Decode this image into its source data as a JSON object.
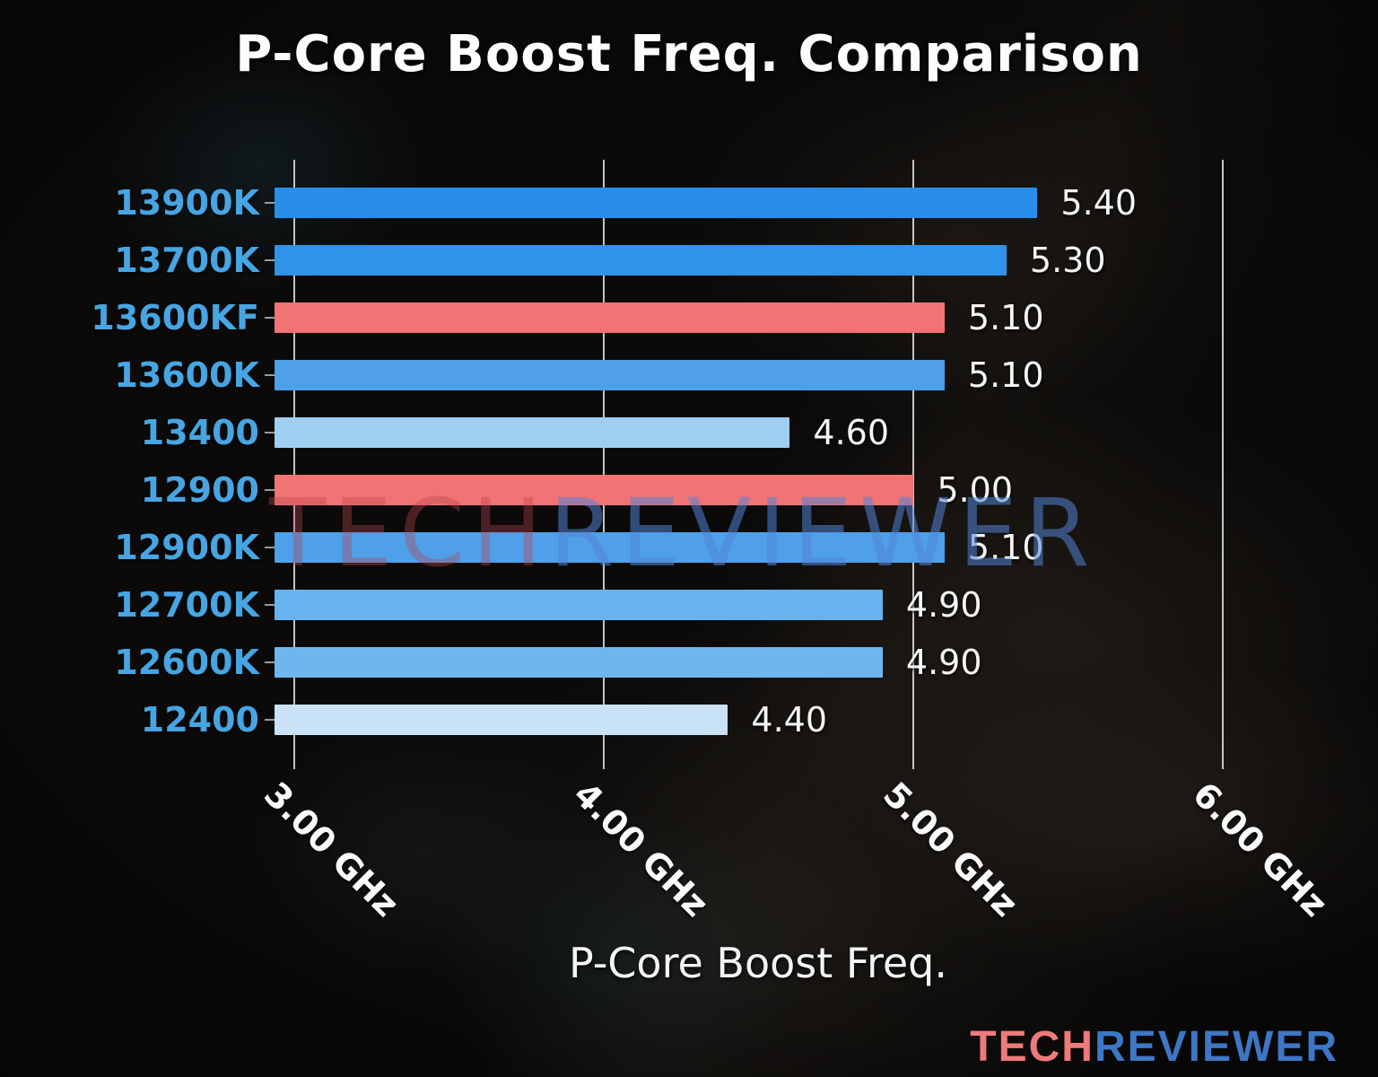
{
  "title": "P-Core Boost Freq. Comparison",
  "watermark": {
    "part1": "TECH",
    "part2": "REVIEWER"
  },
  "logo": {
    "part1": "TECH",
    "part2": "REVIEWER",
    "part1_color": "#ef7a7a",
    "part2_color": "#3d77c5"
  },
  "colors": {
    "label_blue": "#46a5e2",
    "gridline": "rgba(214,216,218,0.9)",
    "value_text": "#f5f5f5",
    "gen13_high_blue": "#2a8ee8",
    "mid_blue": "#4f9fe9",
    "light_blue": "#9fcef3",
    "lighter_blue": "#6fb6ef",
    "lightest_blue": "#c9e2f8",
    "salmon": "#f17373"
  },
  "chart_data": {
    "type": "bar",
    "orientation": "horizontal",
    "title": "P-Core Boost Freq. Comparison",
    "xlabel": "P-Core Boost Freq.",
    "ylabel": "",
    "categories": [
      "13900K",
      "13700K",
      "13600KF",
      "13600K",
      "13400",
      "12900",
      "12900K",
      "12700K",
      "12600K",
      "12400"
    ],
    "values": [
      5.4,
      5.3,
      5.1,
      5.1,
      4.6,
      5.0,
      5.1,
      4.9,
      4.9,
      4.4
    ],
    "value_labels": [
      "5.40",
      "5.30",
      "5.10",
      "5.10",
      "4.60",
      "5.00",
      "5.10",
      "4.90",
      "4.90",
      "4.40"
    ],
    "bar_colors": [
      "#2a8ee8",
      "#2f93e9",
      "#f17373",
      "#4f9fe9",
      "#9fcef3",
      "#f17373",
      "#4f9fe9",
      "#68b2ee",
      "#6fb6ef",
      "#c9e2f8"
    ],
    "unit": "GHz",
    "x_ticks": [
      {
        "value": 3.0,
        "label": "3.00 GHz"
      },
      {
        "value": 4.0,
        "label": "4.00 GHz"
      },
      {
        "value": 5.0,
        "label": "5.00 GHz"
      },
      {
        "value": 6.0,
        "label": "6.00 GHz"
      }
    ],
    "xlim": [
      2.935,
      6.28
    ],
    "grid": "vertical"
  }
}
